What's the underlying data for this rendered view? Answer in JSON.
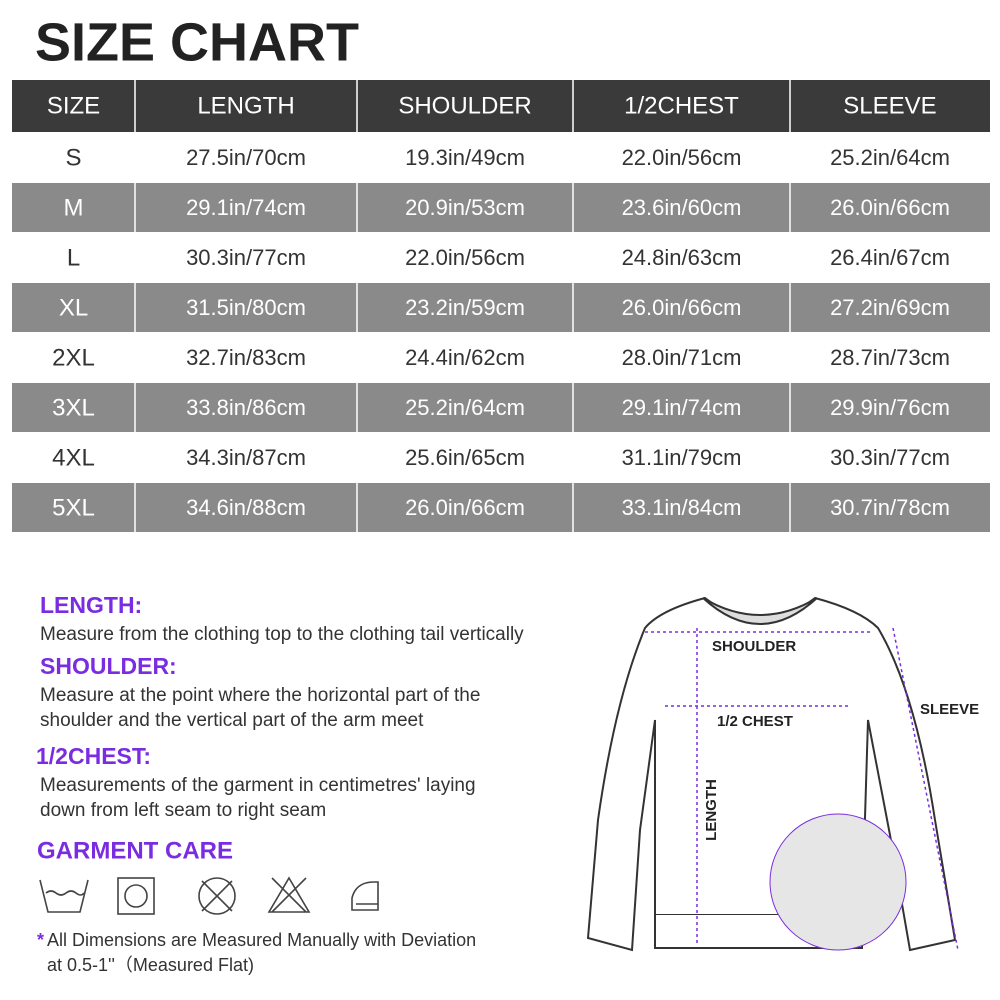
{
  "title": "SIZE CHART",
  "table": {
    "header": [
      "SIZE",
      "LENGTH",
      "SHOULDER",
      "1/2CHEST",
      "SLEEVE"
    ],
    "rows": [
      [
        "S",
        "27.5in/70cm",
        "19.3in/49cm",
        "22.0in/56cm",
        "25.2in/64cm"
      ],
      [
        "M",
        "29.1in/74cm",
        "20.9in/53cm",
        "23.6in/60cm",
        "26.0in/66cm"
      ],
      [
        "L",
        "30.3in/77cm",
        "22.0in/56cm",
        "24.8in/63cm",
        "26.4in/67cm"
      ],
      [
        "XL",
        "31.5in/80cm",
        "23.2in/59cm",
        "26.0in/66cm",
        "27.2in/69cm"
      ],
      [
        "2XL",
        "32.7in/83cm",
        "24.4in/62cm",
        "28.0in/71cm",
        "28.7in/73cm"
      ],
      [
        "3XL",
        "33.8in/86cm",
        "25.2in/64cm",
        "29.1in/74cm",
        "29.9in/76cm"
      ],
      [
        "4XL",
        "34.3in/87cm",
        "25.6in/65cm",
        "31.1in/79cm",
        "30.3in/77cm"
      ],
      [
        "5XL",
        "34.6in/88cm",
        "26.0in/66cm",
        "33.1in/84cm",
        "30.7in/78cm"
      ]
    ]
  },
  "definitions": [
    {
      "term": "LENGTH:",
      "lines": [
        "Measure from the clothing top to the clothing tail vertically"
      ]
    },
    {
      "term": "SHOULDER:",
      "lines": [
        "Measure at the point where the horizontal part of the",
        "shoulder and the vertical part of the arm meet"
      ]
    },
    {
      "term": "1/2CHEST:",
      "lines": [
        "Measurements of the garment in centimetres' laying",
        "down from left seam to right seam"
      ]
    }
  ],
  "care": {
    "title": "GARMENT CARE"
  },
  "footnote": {
    "marker": "*",
    "lines": [
      "All Dimensions are Measured Manually with Deviation",
      "at 0.5-1''（Measured Flat)"
    ]
  },
  "diagram": {
    "shoulder": "SHOULDER",
    "chest": "1/2 CHEST",
    "length": "LENGTH",
    "sleeve": "SLEEVE"
  }
}
